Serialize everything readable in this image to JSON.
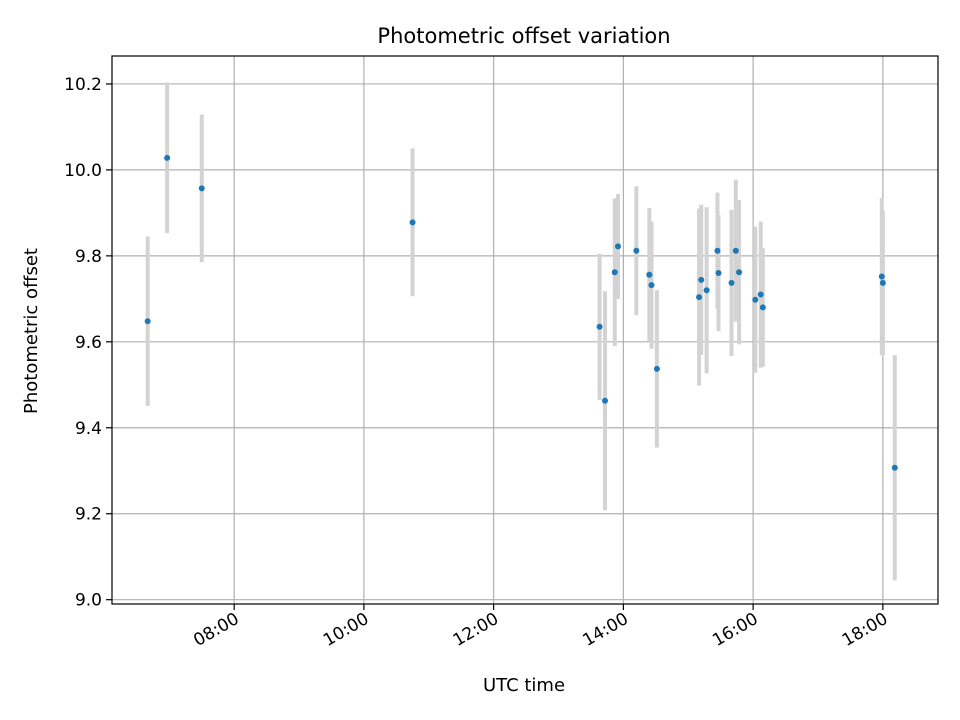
{
  "chart_data": {
    "type": "scatter",
    "title": "Photometric offset variation",
    "xlabel": "UTC time",
    "ylabel": "Photometric offset",
    "x_ticks": [
      "08:00",
      "10:00",
      "12:00",
      "14:00",
      "16:00",
      "18:00"
    ],
    "y_ticks": [
      "9.0",
      "9.2",
      "9.4",
      "9.6",
      "9.8",
      "10.0",
      "10.2"
    ],
    "xlim": [
      "06:07",
      "18:51"
    ],
    "ylim": [
      8.99,
      10.265
    ],
    "grid": true,
    "point_color": "#1f77b4",
    "errorbar_color": "#d3d3d3",
    "points": [
      {
        "time": "06:40",
        "y": 9.648,
        "yerr": 0.197
      },
      {
        "time": "06:58",
        "y": 10.028,
        "yerr": 0.175
      },
      {
        "time": "07:30",
        "y": 9.957,
        "yerr": 0.172
      },
      {
        "time": "10:45",
        "y": 9.878,
        "yerr": 0.172
      },
      {
        "time": "13:38",
        "y": 9.635,
        "yerr": 0.17
      },
      {
        "time": "13:43",
        "y": 9.463,
        "yerr": 0.255
      },
      {
        "time": "13:52",
        "y": 9.762,
        "yerr": 0.172
      },
      {
        "time": "13:55",
        "y": 9.822,
        "yerr": 0.122
      },
      {
        "time": "14:12",
        "y": 9.812,
        "yerr": 0.15
      },
      {
        "time": "14:24",
        "y": 9.756,
        "yerr": 0.155
      },
      {
        "time": "14:26",
        "y": 9.732,
        "yerr": 0.148
      },
      {
        "time": "14:31",
        "y": 9.537,
        "yerr": 0.183
      },
      {
        "time": "15:10",
        "y": 9.704,
        "yerr": 0.206
      },
      {
        "time": "15:12",
        "y": 9.744,
        "yerr": 0.175
      },
      {
        "time": "15:17",
        "y": 9.72,
        "yerr": 0.193
      },
      {
        "time": "15:27",
        "y": 9.812,
        "yerr": 0.135
      },
      {
        "time": "15:28",
        "y": 9.76,
        "yerr": 0.135
      },
      {
        "time": "15:40",
        "y": 9.737,
        "yerr": 0.17
      },
      {
        "time": "15:44",
        "y": 9.812,
        "yerr": 0.165
      },
      {
        "time": "15:47",
        "y": 9.762,
        "yerr": 0.168
      },
      {
        "time": "16:02",
        "y": 9.698,
        "yerr": 0.17
      },
      {
        "time": "16:07",
        "y": 9.71,
        "yerr": 0.17
      },
      {
        "time": "16:09",
        "y": 9.68,
        "yerr": 0.138
      },
      {
        "time": "17:59",
        "y": 9.752,
        "yerr": 0.183
      },
      {
        "time": "18:00",
        "y": 9.737,
        "yerr": 0.168
      },
      {
        "time": "18:11",
        "y": 9.307,
        "yerr": 0.262
      }
    ]
  }
}
